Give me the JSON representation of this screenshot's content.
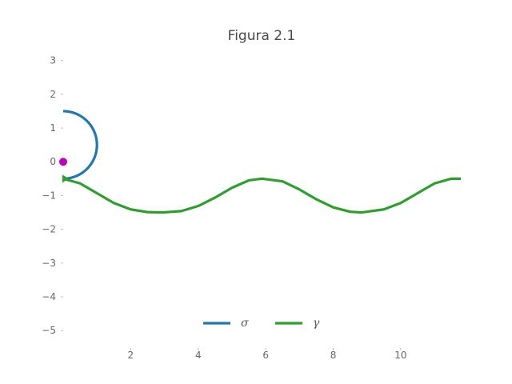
{
  "chart_data": {
    "type": "line",
    "title": "Figura 2.1",
    "xlabel": "",
    "ylabel": "",
    "xlim": [
      0,
      11.78
    ],
    "ylim": [
      -5.35,
      3.3
    ],
    "grid": false,
    "legend_position": "bottom-center",
    "x_ticks": [
      2,
      4,
      6,
      8,
      10
    ],
    "x_tick_labels": [
      "2",
      "4",
      "6",
      "8",
      "10"
    ],
    "y_ticks": [
      3,
      2,
      1,
      0,
      -1,
      -2,
      -3,
      -4,
      -5
    ],
    "y_tick_labels": [
      "3",
      "2",
      "1",
      "0",
      "−1",
      "−2",
      "−3",
      "−4",
      "−5"
    ],
    "series": [
      {
        "name": "σ",
        "color": "#1f77b4",
        "kind": "circle-arc",
        "center": [
          0,
          0.5
        ],
        "radius": 1.0,
        "theta_start_deg": -90,
        "theta_end_deg": 90
      },
      {
        "name": "γ",
        "color": "#2ca02c",
        "kind": "curve",
        "x": [
          0.0,
          0.5,
          1.0,
          1.5,
          2.0,
          2.5,
          2.94,
          3.5,
          4.0,
          4.5,
          5.0,
          5.5,
          5.89,
          6.5,
          7.0,
          7.5,
          8.0,
          8.5,
          8.84,
          9.5,
          10.0,
          10.5,
          11.0,
          11.5,
          11.78
        ],
        "y": [
          -0.5,
          -0.64,
          -0.93,
          -1.22,
          -1.41,
          -1.49,
          -1.5,
          -1.46,
          -1.31,
          -1.06,
          -0.77,
          -0.55,
          -0.5,
          -0.58,
          -0.82,
          -1.11,
          -1.35,
          -1.48,
          -1.5,
          -1.41,
          -1.22,
          -0.93,
          -0.64,
          -0.5,
          -0.5
        ]
      }
    ],
    "points": [
      {
        "name": "center",
        "x": 0,
        "y": 0,
        "color": "#c000c0"
      }
    ],
    "markers": [
      {
        "name": "start-triangle",
        "x": 0,
        "y": -0.5,
        "color": "#2ca02c"
      }
    ]
  }
}
